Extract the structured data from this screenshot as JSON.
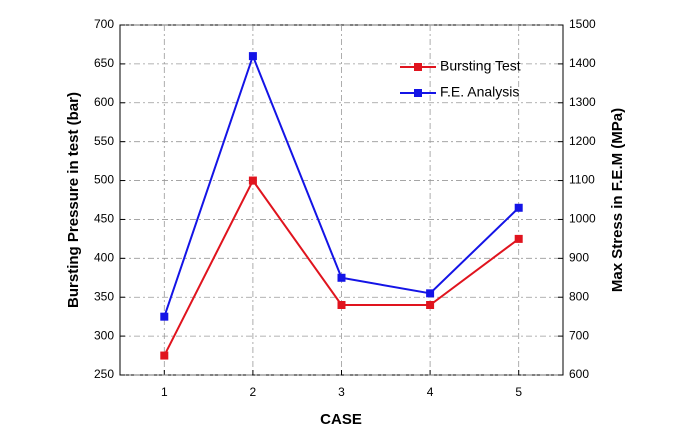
{
  "chart_data": {
    "type": "line",
    "x_label": "CASE",
    "y_label": "Bursting Pressure in test (bar)",
    "y2_label": "Max Stress in F.E.M (MPa)",
    "x": [
      1,
      2,
      3,
      4,
      5
    ],
    "xlim": [
      0.5,
      5.5
    ],
    "xticks": [
      1,
      2,
      3,
      4,
      5
    ],
    "ylim": [
      250,
      700
    ],
    "yticks": [
      250,
      300,
      350,
      400,
      450,
      500,
      550,
      600,
      650,
      700
    ],
    "y2lim": [
      600,
      1500
    ],
    "y2ticks": [
      600,
      700,
      800,
      900,
      1000,
      1100,
      1200,
      1300,
      1400,
      1500
    ],
    "grid": true,
    "legend": "upper right",
    "series": [
      {
        "name": "Bursting Test",
        "color": "#e0141e",
        "values": [
          275,
          500,
          340,
          340,
          425
        ]
      },
      {
        "name": "F.E. Analysis",
        "color": "#1414e6",
        "axis": "y2",
        "values": [
          750,
          1420,
          850,
          810,
          1030
        ]
      }
    ]
  }
}
